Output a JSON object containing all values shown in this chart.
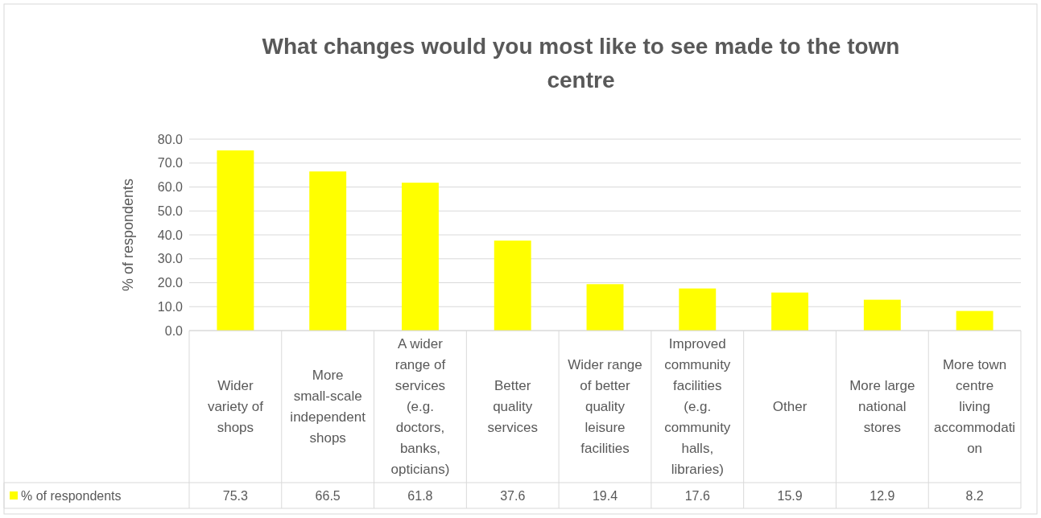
{
  "chart_data": {
    "type": "bar",
    "title": "What changes would you most like to see made to the town centre",
    "ylabel": "% of respondents",
    "categories": [
      "Wider variety of shops",
      "More small-scale independent shops",
      "A wider range of services (e.g. doctors, banks, opticians)",
      "Better quality services",
      "Wider range of better quality leisure facilities",
      "Improved community facilities (e.g. community halls, libraries)",
      "Other",
      "More large national stores",
      "More town centre living accommodation"
    ],
    "series": [
      {
        "name": "% of respondents",
        "color": "#ffff00",
        "values": [
          75.3,
          66.5,
          61.8,
          37.6,
          19.4,
          17.6,
          15.9,
          12.9,
          8.2
        ]
      }
    ],
    "ylim": [
      0,
      80
    ],
    "yticks": [
      {
        "value": 0,
        "label": "0.0"
      },
      {
        "value": 10,
        "label": "10.0"
      },
      {
        "value": 20,
        "label": "20.0"
      },
      {
        "value": 30,
        "label": "30.0"
      },
      {
        "value": 40,
        "label": "40.0"
      },
      {
        "value": 50,
        "label": "50.0"
      },
      {
        "value": 60,
        "label": "60.0"
      },
      {
        "value": 70,
        "label": "70.0"
      },
      {
        "value": 80,
        "label": "80.0"
      }
    ],
    "grid": "y",
    "data_labels": true,
    "legend": "bottom"
  }
}
